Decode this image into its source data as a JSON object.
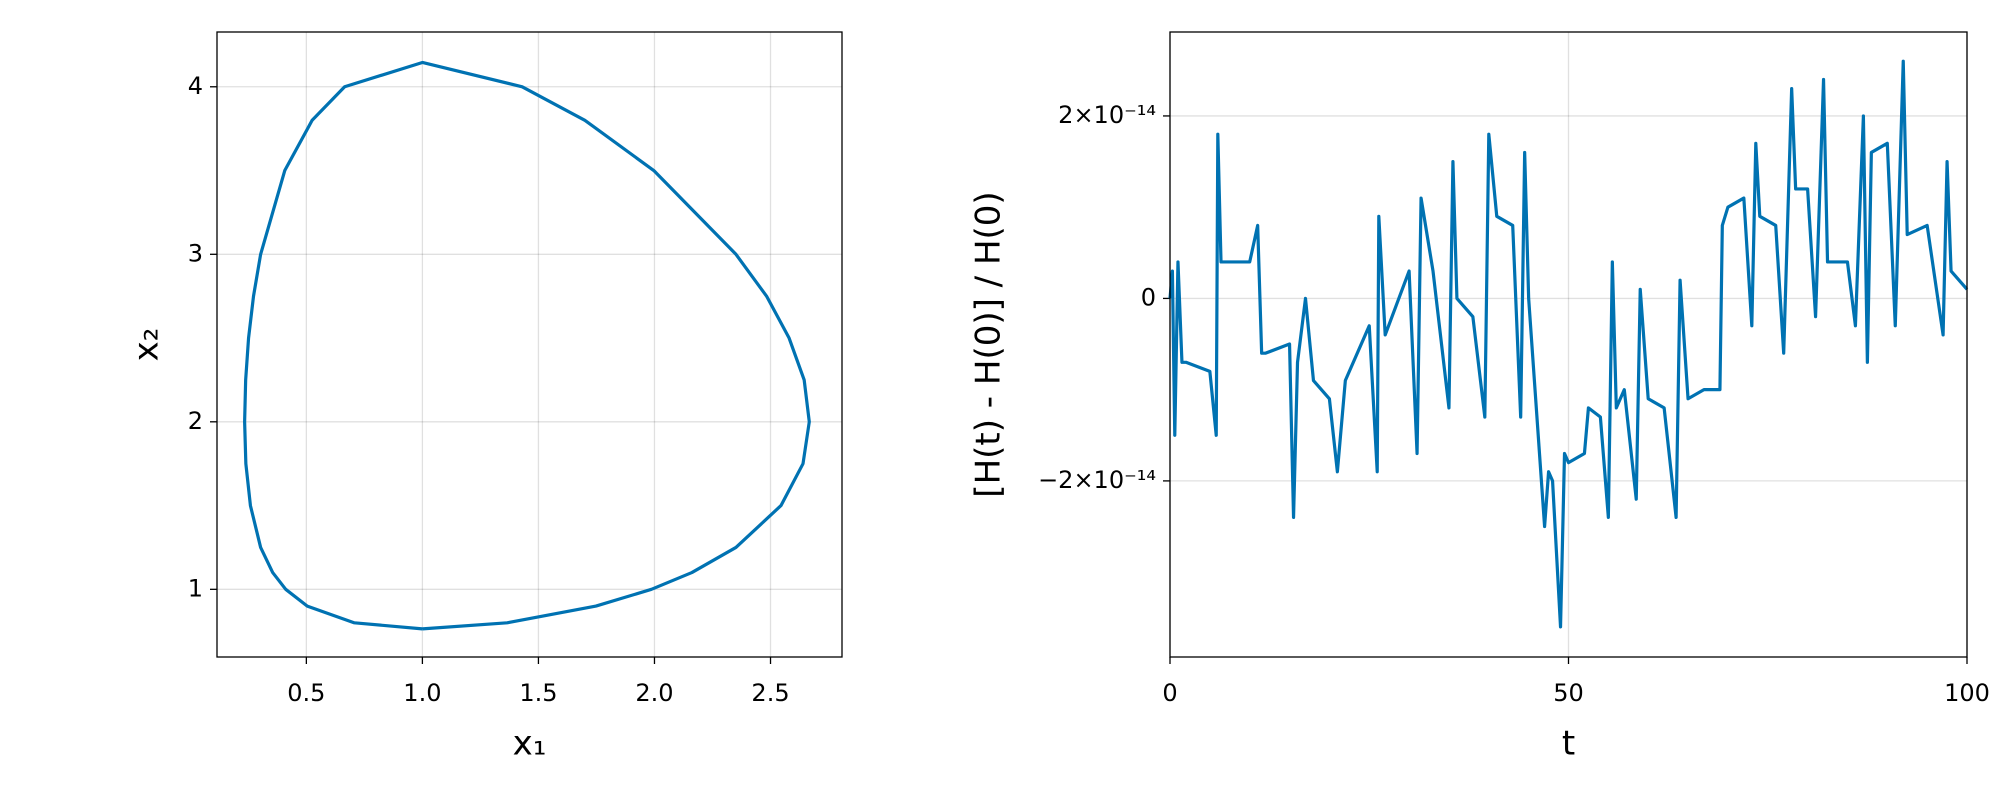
{
  "chart_data": [
    {
      "type": "line",
      "xlabel": "x₁",
      "ylabel": "x₂",
      "color": "#0072b2",
      "grid": true,
      "x": [
        1,
        1.365,
        1.748,
        1.987,
        2.161,
        2.351,
        2.545,
        2.64,
        2.667,
        2.645,
        2.58,
        2.483,
        2.351,
        1.997,
        1.7,
        1.43,
        1,
        0.665,
        0.525,
        0.407,
        0.303,
        0.2723,
        0.251,
        0.2385,
        0.234,
        0.2393,
        0.259,
        0.303,
        0.355,
        0.411,
        0.504,
        0.707,
        1
      ],
      "values": [
        0.764,
        0.8,
        0.9,
        1.0,
        1.1,
        1.25,
        1.5,
        1.75,
        2,
        2.25,
        2.5,
        2.75,
        3,
        3.5,
        3.8,
        4.0,
        4.145,
        4.0,
        3.8,
        3.5,
        3,
        2.75,
        2.5,
        2.25,
        2,
        1.75,
        1.5,
        1.25,
        1.1,
        1.0,
        0.9,
        0.8,
        0.764
      ],
      "xlim": [
        0.115,
        2.808
      ],
      "ylim": [
        0.596,
        4.327
      ],
      "xticks": [
        0.5,
        {
          "value": 1,
          "label": "1.0"
        },
        1.5,
        {
          "value": 2,
          "label": "2.0"
        },
        2.5
      ],
      "yticks": [
        1,
        2,
        3,
        4
      ]
    },
    {
      "type": "line",
      "xlabel": "t",
      "ylabel": "[H(t) - H(0)] / H(0)",
      "color": "#0072b2",
      "grid": true,
      "x": [
        0,
        0.3,
        0.6,
        1,
        1.5,
        2,
        5,
        5.8,
        6,
        6.4,
        7,
        10,
        11,
        11.5,
        12,
        15,
        15.5,
        16,
        17,
        18,
        20,
        21,
        22,
        25,
        26,
        26.2,
        27,
        30,
        31,
        31.5,
        33,
        35,
        35.5,
        36,
        38,
        39.5,
        40,
        41,
        43,
        44,
        44.5,
        45,
        47,
        47.5,
        48,
        49,
        49.5,
        50,
        52,
        52.5,
        54,
        55,
        55.5,
        56,
        57,
        58.5,
        59,
        60,
        62,
        63.5,
        64,
        65,
        67,
        69,
        69.3,
        70,
        72,
        73,
        73.5,
        74,
        76,
        77,
        78,
        78.5,
        80,
        81,
        82,
        82.5,
        85,
        86,
        87,
        87.5,
        88,
        90,
        91,
        92,
        92.5,
        95,
        97,
        97.5,
        98,
        100
      ],
      "values": [
        0,
        3e-15,
        -1.5e-14,
        4e-15,
        -7e-15,
        -7e-15,
        -8e-15,
        -1.5e-14,
        1.8e-14,
        4e-15,
        4e-15,
        4e-15,
        8e-15,
        -6e-15,
        -6e-15,
        -5e-15,
        -2.4e-14,
        -7e-15,
        0,
        -9e-15,
        -1.1e-14,
        -1.9e-14,
        -9e-15,
        -3e-15,
        -1.9e-14,
        9e-15,
        -4e-15,
        3e-15,
        -1.7e-14,
        1.1e-14,
        3e-15,
        -1.2e-14,
        1.5e-14,
        0,
        -2e-15,
        -1.3e-14,
        1.8e-14,
        9e-15,
        8e-15,
        -1.3e-14,
        1.6e-14,
        0,
        -2.5e-14,
        -1.9e-14,
        -2e-14,
        -3.6e-14,
        -1.7e-14,
        -1.8e-14,
        -1.7e-14,
        -1.2e-14,
        -1.3e-14,
        -2.4e-14,
        4e-15,
        -1.2e-14,
        -1e-14,
        -2.2e-14,
        1e-15,
        -1.1e-14,
        -1.2e-14,
        -2.4e-14,
        2e-15,
        -1.1e-14,
        -1e-14,
        -1e-14,
        8e-15,
        1e-14,
        1.1e-14,
        -3e-15,
        1.7e-14,
        9e-15,
        8e-15,
        -6e-15,
        2.3e-14,
        1.2e-14,
        1.2e-14,
        -2e-15,
        2.4e-14,
        4e-15,
        4e-15,
        -3e-15,
        2e-14,
        -7e-15,
        1.6e-14,
        1.7e-14,
        -3e-15,
        2.6e-14,
        7e-15,
        8e-15,
        -4e-15,
        1.5e-14,
        3e-15,
        1e-15
      ],
      "xlim": [
        0,
        100
      ],
      "ylim": [
        -3.93e-14,
        2.92e-14
      ],
      "xticks": [
        0,
        50,
        100
      ],
      "yticks": [
        {
          "value": -2e-14,
          "label": "−2×10⁻¹⁴"
        },
        0,
        {
          "value": 2e-14,
          "label": "2×10⁻¹⁴"
        }
      ]
    }
  ]
}
